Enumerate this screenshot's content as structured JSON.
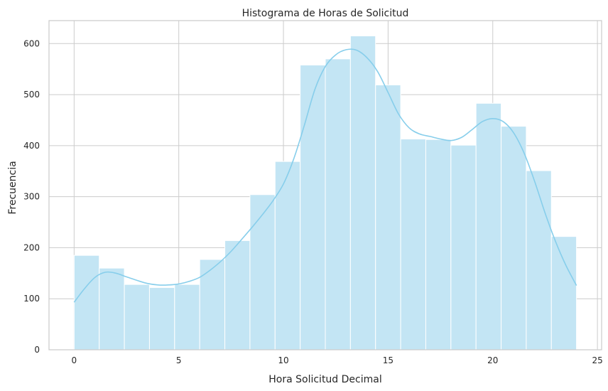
{
  "chart_data": {
    "type": "bar",
    "title": "Histograma de Horas de Solicitud",
    "xlabel": "Hora Solicitud Decimal",
    "ylabel": "Frecuencia",
    "xlim": [
      -1.2,
      25.2
    ],
    "ylim": [
      0,
      645
    ],
    "xticks": [
      0,
      5,
      10,
      15,
      20,
      25
    ],
    "yticks": [
      0,
      100,
      200,
      300,
      400,
      500,
      600
    ],
    "grid": true,
    "bins": [
      {
        "start": 0.0,
        "end": 1.2,
        "value": 185
      },
      {
        "start": 1.2,
        "end": 2.4,
        "value": 160
      },
      {
        "start": 2.4,
        "end": 3.6,
        "value": 128
      },
      {
        "start": 3.6,
        "end": 4.8,
        "value": 122
      },
      {
        "start": 4.8,
        "end": 6.0,
        "value": 128
      },
      {
        "start": 6.0,
        "end": 7.2,
        "value": 177
      },
      {
        "start": 7.2,
        "end": 8.4,
        "value": 214
      },
      {
        "start": 8.4,
        "end": 9.6,
        "value": 304
      },
      {
        "start": 9.6,
        "end": 10.8,
        "value": 369
      },
      {
        "start": 10.8,
        "end": 12.0,
        "value": 558
      },
      {
        "start": 12.0,
        "end": 13.2,
        "value": 570
      },
      {
        "start": 13.2,
        "end": 14.4,
        "value": 615
      },
      {
        "start": 14.4,
        "end": 15.6,
        "value": 519
      },
      {
        "start": 15.6,
        "end": 16.8,
        "value": 413
      },
      {
        "start": 16.8,
        "end": 18.0,
        "value": 412
      },
      {
        "start": 18.0,
        "end": 19.2,
        "value": 401
      },
      {
        "start": 19.2,
        "end": 20.4,
        "value": 483
      },
      {
        "start": 20.4,
        "end": 21.6,
        "value": 438
      },
      {
        "start": 21.6,
        "end": 22.8,
        "value": 351
      },
      {
        "start": 22.8,
        "end": 24.0,
        "value": 222
      }
    ],
    "kde_curve": {
      "x": [
        0,
        0.5,
        1,
        1.5,
        2,
        2.5,
        3,
        3.5,
        4,
        4.5,
        5,
        5.5,
        6,
        6.5,
        7,
        7.5,
        8,
        8.5,
        9,
        9.5,
        10,
        10.5,
        11,
        11.5,
        12,
        12.5,
        13,
        13.5,
        14,
        14.5,
        15,
        15.5,
        16,
        16.5,
        17,
        17.5,
        18,
        18.5,
        19,
        19.5,
        20,
        20.5,
        21,
        21.5,
        22,
        22.5,
        23,
        23.5,
        24
      ],
      "y": [
        93,
        120,
        142,
        152,
        150,
        143,
        136,
        130,
        127,
        127,
        129,
        134,
        142,
        156,
        173,
        193,
        216,
        240,
        265,
        292,
        325,
        375,
        440,
        510,
        555,
        578,
        588,
        587,
        572,
        545,
        504,
        462,
        435,
        423,
        418,
        413,
        410,
        416,
        431,
        447,
        453,
        447,
        425,
        385,
        330,
        268,
        212,
        165,
        126
      ]
    },
    "bar_color": "#c3e5f4",
    "kde_color": "#87ceeb"
  }
}
